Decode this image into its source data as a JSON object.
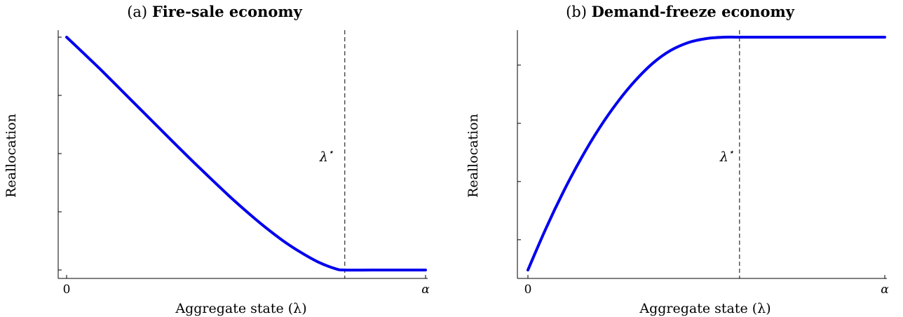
{
  "chart_data": [
    {
      "type": "line",
      "title_prefix": "(a)",
      "title": "Fire-sale economy",
      "xlabel": "Aggregate state (λ)",
      "ylabel": "Reallocation",
      "x_tick_labels": [
        "0",
        "α"
      ],
      "threshold_label": "λ",
      "threshold_label_sup": "⋆",
      "threshold_x": 0.775,
      "xlim": [
        0,
        1
      ],
      "ylim": [
        0,
        1
      ],
      "y_ticks": [
        0,
        0.25,
        0.5,
        0.75,
        1
      ],
      "x_ticks": [
        0,
        1
      ],
      "series_color": "#0000ee",
      "grid": false,
      "x": [
        0,
        0.05,
        0.1,
        0.15,
        0.2,
        0.25,
        0.3,
        0.35,
        0.4,
        0.45,
        0.5,
        0.55,
        0.6,
        0.65,
        0.7,
        0.75,
        0.775,
        0.85,
        0.95,
        1.0
      ],
      "y": [
        1.0,
        0.927,
        0.853,
        0.776,
        0.699,
        0.622,
        0.545,
        0.469,
        0.395,
        0.322,
        0.253,
        0.188,
        0.129,
        0.078,
        0.035,
        0.005,
        0.0,
        0.0,
        0.0,
        0.0
      ]
    },
    {
      "type": "line",
      "title_prefix": "(b)",
      "title": "Demand-freeze economy",
      "xlabel": "Aggregate state (λ)",
      "ylabel": "Reallocation",
      "x_tick_labels": [
        "0",
        "α"
      ],
      "threshold_label": "λ",
      "threshold_label_sup": "⋆",
      "threshold_x": 0.593,
      "xlim": [
        0,
        1
      ],
      "ylim": [
        0,
        1
      ],
      "y_ticks": [
        0.13,
        0.38,
        0.63,
        0.88
      ],
      "x_ticks": [
        0,
        1
      ],
      "series_color": "#0000ee",
      "grid": false,
      "x": [
        0,
        0.05,
        0.1,
        0.15,
        0.2,
        0.25,
        0.3,
        0.35,
        0.4,
        0.45,
        0.5,
        0.55,
        0.593,
        0.7,
        0.8,
        0.9,
        1.0
      ],
      "y": [
        0.0,
        0.177,
        0.338,
        0.482,
        0.609,
        0.719,
        0.812,
        0.888,
        0.943,
        0.977,
        0.994,
        1.0,
        1.0,
        1.0,
        1.0,
        1.0,
        1.0
      ]
    }
  ]
}
